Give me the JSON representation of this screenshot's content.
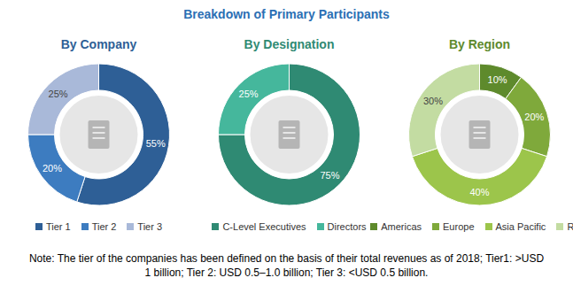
{
  "title": "Breakdown of Primary Participants",
  "note": "Note: The tier of the companies has been defined on the basis of their total revenues as of 2018; Tier1: >USD 1 billion; Tier 2: USD 0.5–1.0 billion; Tier 3: <USD 0.5 billion.",
  "chart_data": [
    {
      "type": "pie",
      "title": "By Company",
      "categories": [
        "Tier 1",
        "Tier 2",
        "Tier 3"
      ],
      "values": [
        55,
        20,
        25
      ],
      "value_labels": [
        "55%",
        "20%",
        "25%"
      ],
      "colors": [
        "#2e5f96",
        "#3d7cc0",
        "#a9b9d9"
      ],
      "data_labels": true
    },
    {
      "type": "pie",
      "title": "By Designation",
      "categories": [
        "C-Level Executives",
        "Directors"
      ],
      "values": [
        75,
        25
      ],
      "value_labels": [
        "75%",
        "25%"
      ],
      "colors": [
        "#2f8a73",
        "#45b79c"
      ],
      "data_labels": true
    },
    {
      "type": "pie",
      "title": "By Region",
      "categories": [
        "Americas",
        "Europe",
        "Asia Pacific",
        "RoW"
      ],
      "values": [
        10,
        20,
        40,
        30
      ],
      "value_labels": [
        "10%",
        "20%",
        "40%",
        "30%"
      ],
      "colors": [
        "#5e8a2c",
        "#7fa93b",
        "#9cc54b",
        "#c3dca2"
      ],
      "data_labels": true
    }
  ]
}
